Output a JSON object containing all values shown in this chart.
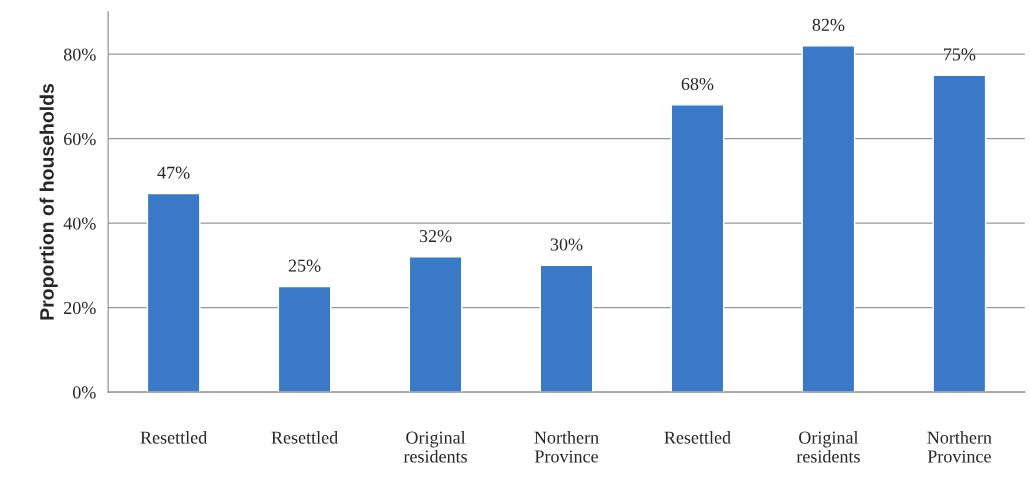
{
  "chart_data": {
    "type": "bar",
    "ylabel": "Proportion of households",
    "categories": [
      "Resettled",
      "Resettled",
      "Original\nresidents",
      "Northern\nProvince",
      "Resettled",
      "Original\nresidents",
      "Northern\nProvince"
    ],
    "values": [
      47,
      25,
      32,
      30,
      68,
      82,
      75
    ],
    "value_labels": [
      "47%",
      "25%",
      "32%",
      "30%",
      "68%",
      "82%",
      "75%"
    ],
    "color": "#3a78c8",
    "ylim": [
      0,
      90
    ],
    "yticks": [
      {
        "value": 0,
        "label": "0%"
      },
      {
        "value": 20,
        "label": "20%"
      },
      {
        "value": 40,
        "label": "40%"
      },
      {
        "value": 60,
        "label": "60%"
      },
      {
        "value": 80,
        "label": "80%"
      }
    ],
    "grid": "y"
  }
}
